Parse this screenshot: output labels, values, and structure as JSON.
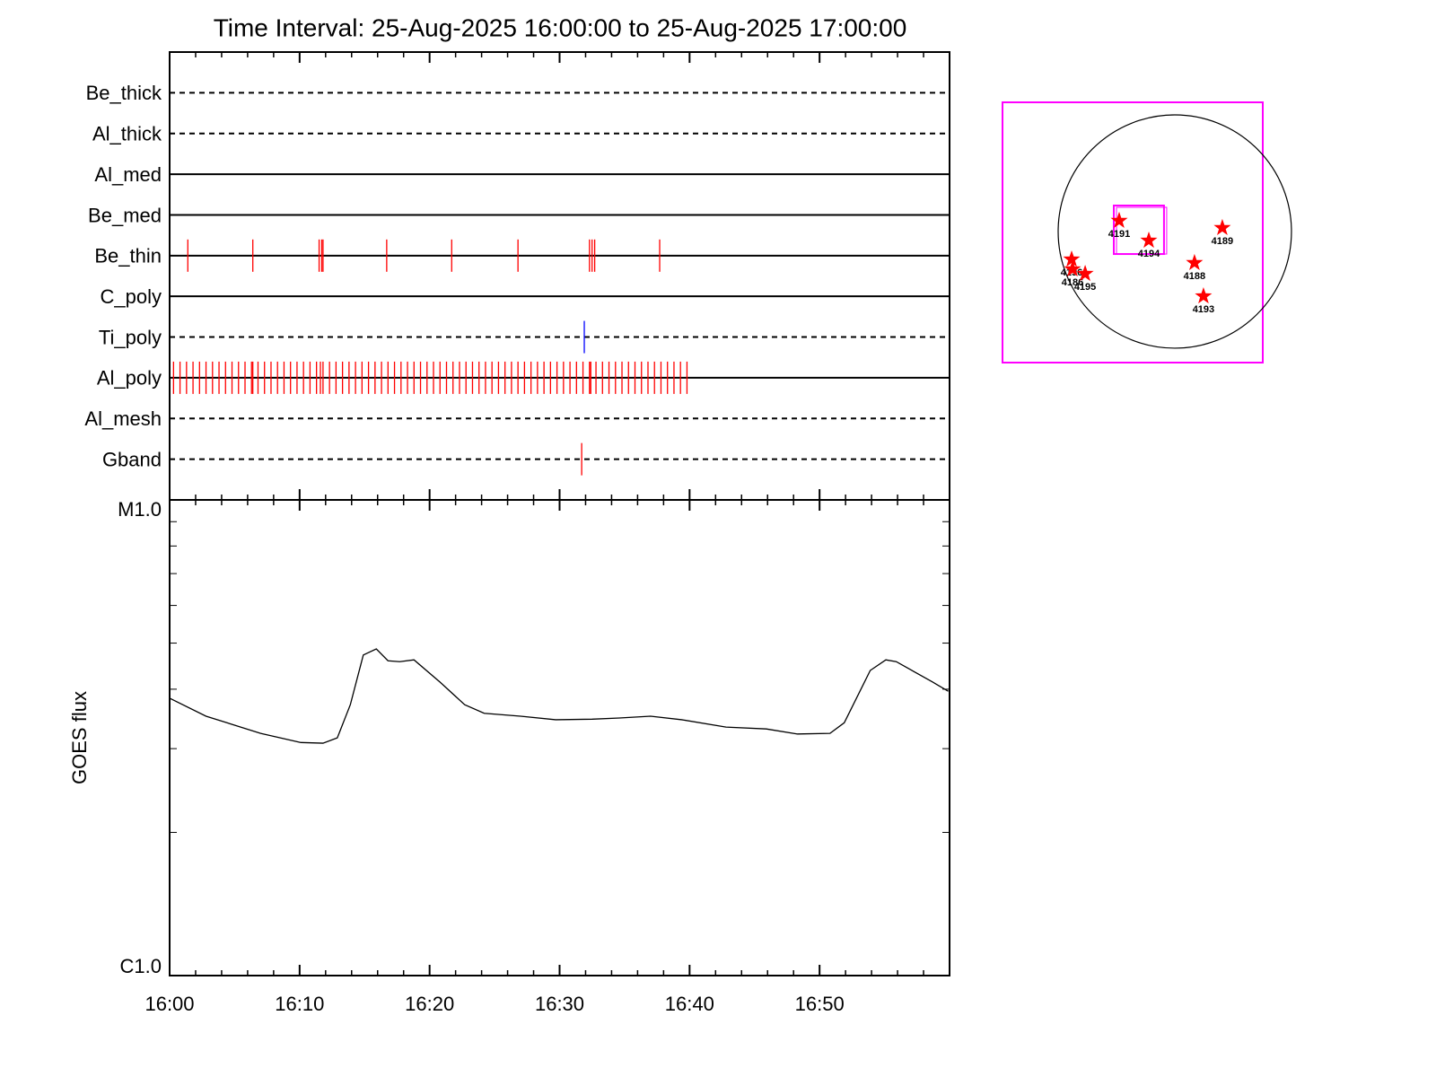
{
  "chart_data": [
    {
      "type": "timeline",
      "title": "Time Interval: 25-Aug-2025 16:00:00 to 25-Aug-2025 17:00:00",
      "xlim": [
        0,
        60
      ],
      "rows": [
        {
          "name": "Be_thick",
          "style": "dashed",
          "color": "#ff0000",
          "times": []
        },
        {
          "name": "Al_thick",
          "style": "dashed",
          "color": "#ff0000",
          "times": []
        },
        {
          "name": "Al_med",
          "style": "solid",
          "color": "#ff0000",
          "times": []
        },
        {
          "name": "Be_med",
          "style": "solid",
          "color": "#ff0000",
          "times": []
        },
        {
          "name": "Be_thin",
          "style": "solid",
          "color": "#ff0000",
          "times": [
            1.4,
            6.4,
            11.5,
            11.7,
            11.8,
            16.7,
            21.7,
            26.8,
            32.3,
            32.5,
            32.7,
            37.7
          ]
        },
        {
          "name": "C_poly",
          "style": "solid",
          "color": "#ff0000",
          "times": []
        },
        {
          "name": "Ti_poly",
          "style": "dashed",
          "color": "#0000ff",
          "times": [
            31.9
          ]
        },
        {
          "name": "Al_poly",
          "style": "solid",
          "color": "#ff0000",
          "times": [
            0.3,
            0.8,
            1.3,
            1.8,
            2.3,
            2.8,
            3.3,
            3.8,
            4.3,
            4.8,
            5.3,
            5.8,
            6.3,
            6.4,
            6.8,
            7.3,
            7.8,
            8.3,
            8.8,
            9.3,
            9.8,
            10.3,
            10.8,
            11.3,
            11.6,
            11.8,
            12.3,
            12.8,
            13.3,
            13.8,
            14.3,
            14.8,
            15.3,
            15.8,
            16.3,
            16.8,
            17.3,
            17.8,
            18.3,
            18.8,
            19.3,
            19.8,
            20.3,
            20.8,
            21.3,
            21.8,
            22.3,
            22.8,
            23.3,
            23.8,
            24.3,
            24.8,
            25.3,
            25.8,
            26.3,
            26.8,
            27.3,
            27.8,
            28.3,
            28.8,
            29.3,
            29.8,
            30.3,
            30.8,
            31.3,
            31.8,
            32.3,
            32.4,
            32.8,
            33.3,
            33.8,
            34.3,
            34.8,
            35.3,
            35.8,
            36.3,
            36.8,
            37.3,
            37.8,
            38.3,
            38.8,
            39.3,
            39.8
          ]
        },
        {
          "name": "Al_mesh",
          "style": "dashed",
          "color": "#ff0000",
          "times": []
        },
        {
          "name": "Gband",
          "style": "dashed",
          "color": "#ff0000",
          "times": [
            31.7
          ]
        }
      ]
    },
    {
      "type": "line",
      "ylabel": "GOES flux",
      "xlim": [
        0,
        60
      ],
      "xticks": [
        {
          "value": 0,
          "label": "16:00"
        },
        {
          "value": 10,
          "label": "16:10"
        },
        {
          "value": 20,
          "label": "16:20"
        },
        {
          "value": 30,
          "label": "16:30"
        },
        {
          "value": 40,
          "label": "16:40"
        },
        {
          "value": 50,
          "label": "16:50"
        }
      ],
      "xminor": [
        2,
        4,
        6,
        8,
        12,
        14,
        16,
        18,
        22,
        24,
        26,
        28,
        32,
        34,
        36,
        38,
        42,
        44,
        46,
        48,
        52,
        54,
        56,
        58
      ],
      "log_y": true,
      "ylim": [
        1e-06,
        1e-05
      ],
      "yticks": [
        {
          "value": 1e-06,
          "label": "C1.0"
        },
        {
          "value": 1e-05,
          "label": "M1.0"
        }
      ],
      "yminor": [
        2e-06,
        3e-06,
        4e-06,
        5e-06,
        6e-06,
        7e-06,
        8e-06,
        9e-06
      ],
      "x": [
        0,
        2.8,
        7.0,
        10.1,
        11.8,
        12.9,
        13.9,
        14.9,
        15.9,
        16.8,
        17.7,
        18.8,
        20.8,
        22.7,
        24.2,
        27.0,
        29.7,
        32.5,
        34.6,
        37.0,
        39.4,
        42.8,
        45.9,
        48.3,
        50.8,
        51.9,
        53.9,
        55.1,
        55.9,
        58.7,
        59.9
      ],
      "series": [
        {
          "color": "#000000",
          "values": [
            3.83e-06,
            3.51e-06,
            3.23e-06,
            3.09e-06,
            3.08e-06,
            3.16e-06,
            3.71e-06,
            4.72e-06,
            4.86e-06,
            4.59e-06,
            4.57e-06,
            4.61e-06,
            4.14e-06,
            3.71e-06,
            3.56e-06,
            3.51e-06,
            3.45e-06,
            3.46e-06,
            3.48e-06,
            3.51e-06,
            3.45e-06,
            3.33e-06,
            3.3e-06,
            3.22e-06,
            3.23e-06,
            3.4e-06,
            4.38e-06,
            4.61e-06,
            4.57e-06,
            4.14e-06,
            3.96e-06
          ]
        }
      ]
    },
    {
      "type": "map",
      "xlim": [
        -1418,
        724
      ],
      "ylim": [
        -1078,
        1063
      ],
      "sun_radius": 960,
      "box_color": "#ff00ff",
      "fov": {
        "x": [
          -502,
          -89
        ],
        "y": [
          -185,
          214
        ]
      },
      "star_color": "#ff0000",
      "stars": [
        {
          "label": "4191",
          "x": -458,
          "y": 89
        },
        {
          "label": "4194",
          "x": -214,
          "y": -74
        },
        {
          "label": "4189",
          "x": 391,
          "y": 30
        },
        {
          "label": "4188",
          "x": 162,
          "y": -258
        },
        {
          "label": "4193",
          "x": 236,
          "y": -532
        },
        {
          "label": "4196",
          "x": -849,
          "y": -229
        },
        {
          "label": "4186",
          "x": -842,
          "y": -310
        },
        {
          "label": "4195",
          "x": -738,
          "y": -347
        }
      ]
    }
  ]
}
